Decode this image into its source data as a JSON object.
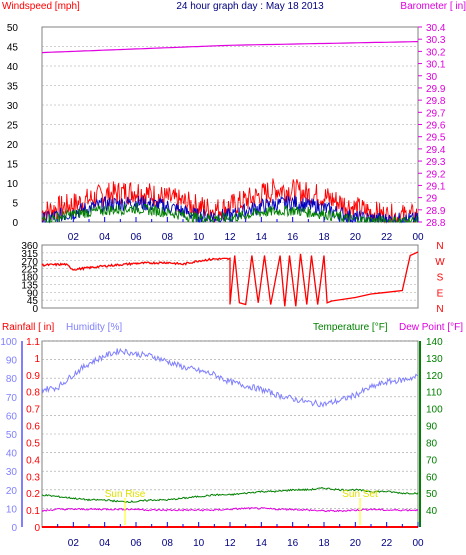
{
  "chart_data": [
    {
      "type": "line",
      "title": "24 hour graph day : May 18 2013",
      "ylabel_left": "Windspeed [mph]",
      "ylabel_right": "Barometer [ in]",
      "ylim_left": [
        0,
        50
      ],
      "ylim_right": [
        28.8,
        30.4
      ],
      "yticks_left": [
        "0",
        "5",
        "10",
        "15",
        "20",
        "25",
        "30",
        "35",
        "40",
        "45",
        "50"
      ],
      "yticks_right": [
        "28.8",
        "28.9",
        "29",
        "29.1",
        "29.2",
        "29.3",
        "29.4",
        "29.5",
        "29.6",
        "29.7",
        "29.8",
        "29.9",
        "30",
        "30.1",
        "30.2",
        "30.3",
        "30.4"
      ],
      "x_ticks": [
        "02",
        "04",
        "06",
        "08",
        "10",
        "12",
        "14",
        "16",
        "18",
        "20",
        "22",
        "00"
      ],
      "series": [
        {
          "axis": "right",
          "color": "#e000e0",
          "x": [
            0,
            4,
            8,
            12,
            16,
            20,
            24
          ],
          "values": [
            30.19,
            30.21,
            30.23,
            30.25,
            30.26,
            30.27,
            30.28
          ]
        },
        {
          "axis": "left",
          "color": "#ff0000",
          "x": [
            0,
            2,
            4,
            6,
            8,
            10,
            11,
            12,
            14,
            15,
            16,
            18,
            20,
            22,
            24
          ],
          "values": [
            2.5,
            4.5,
            7,
            8,
            6,
            4,
            3,
            4,
            7,
            8.5,
            8,
            6.5,
            3.5,
            1.5,
            1.5
          ]
        },
        {
          "axis": "left",
          "color": "#0000c0",
          "x": [
            0,
            2,
            4,
            6,
            8,
            10,
            12,
            14,
            16,
            18,
            20,
            22,
            24
          ],
          "values": [
            0.5,
            2.5,
            4.5,
            5,
            4,
            1.5,
            1.5,
            4,
            5,
            3.5,
            1,
            0.5,
            0.5
          ]
        },
        {
          "axis": "left",
          "color": "#008000",
          "x": [
            0,
            2,
            4,
            6,
            8,
            10,
            12,
            14,
            16,
            18,
            20,
            22,
            24
          ],
          "values": [
            0.5,
            2,
            3,
            3.5,
            2.5,
            1,
            1,
            2.5,
            3,
            2,
            0.5,
            0.2,
            0.2
          ]
        }
      ]
    },
    {
      "type": "line",
      "ylim": [
        0,
        360
      ],
      "yticks": [
        "0",
        "45",
        "90",
        "135",
        "180",
        "225",
        "270",
        "315",
        "360"
      ],
      "compass": [
        "N",
        "W",
        "S",
        "E",
        "N"
      ],
      "series": [
        {
          "color": "#ff0000",
          "x": [
            0,
            1.5,
            2,
            4,
            6,
            8,
            9,
            10,
            11,
            12
          ],
          "values": [
            245,
            250,
            220,
            240,
            255,
            260,
            250,
            270,
            280,
            280
          ]
        }
      ]
    },
    {
      "type": "line",
      "ylabel_left_1": "Rainfall [ in]",
      "ylabel_left_2": "Humidity [%]",
      "ylabel_right_1": "Temperature [°F]",
      "ylabel_right_2": "Dew Point [°F]",
      "ylim_humidity": [
        0,
        100
      ],
      "ylim_rain": [
        0,
        1.1
      ],
      "ylim_temp": [
        30,
        140
      ],
      "yticks_humidity": [
        "0",
        "10",
        "20",
        "30",
        "40",
        "50",
        "60",
        "70",
        "80",
        "90",
        "100"
      ],
      "yticks_rain": [
        "0",
        "0.1",
        "0.2",
        "0.3",
        "0.4",
        "0.5",
        "0.6",
        "0.7",
        "0.8",
        "0.9",
        "1",
        "1.1"
      ],
      "yticks_temp": [
        "40",
        "50",
        "60",
        "70",
        "80",
        "90",
        "100",
        "110",
        "120",
        "130",
        "140"
      ],
      "annotations": [
        "Sun Rise",
        "Sun Set"
      ],
      "series": [
        {
          "name": "Humidity",
          "color": "#8080ff",
          "x": [
            0,
            1,
            2,
            3,
            4,
            5,
            6,
            7,
            8,
            9,
            10,
            11,
            12,
            13,
            14,
            15,
            16,
            17,
            18,
            19,
            20,
            21,
            22,
            23,
            24
          ],
          "values": [
            74,
            75,
            82,
            88,
            92,
            95,
            93,
            92,
            89,
            86,
            84,
            82,
            78,
            76,
            74,
            71,
            69,
            67,
            66,
            68,
            71,
            75,
            78,
            79,
            81
          ]
        },
        {
          "name": "Temperature",
          "color": "#008000",
          "x": [
            0,
            1,
            2,
            3,
            4,
            5,
            6,
            7,
            8,
            9,
            10,
            11,
            12,
            13,
            14,
            15,
            16,
            17,
            18,
            19,
            20,
            21,
            22,
            23,
            24
          ],
          "values": [
            49,
            48,
            47,
            46,
            46,
            45,
            45,
            46,
            46,
            47,
            48,
            49,
            49,
            50,
            51,
            51,
            52,
            52,
            53,
            52,
            52,
            51,
            51,
            50,
            50
          ]
        },
        {
          "name": "Dew Point",
          "color": "#e000e0",
          "x": [
            0,
            1,
            2,
            3,
            4,
            5,
            6,
            7,
            8,
            9,
            10,
            11,
            12,
            13,
            14,
            15,
            16,
            17,
            18,
            19,
            20,
            21,
            22,
            23,
            24
          ],
          "values": [
            39.5,
            40.5,
            40.5,
            40.5,
            40.5,
            40.5,
            40.5,
            40,
            40,
            40,
            40,
            40,
            40.5,
            41,
            41,
            40.5,
            40.5,
            40,
            39.5,
            39.5,
            40,
            40.5,
            40,
            40,
            40
          ]
        },
        {
          "name": "Rainfall",
          "color": "#ff0000",
          "x": [
            0,
            24
          ],
          "values": [
            0,
            0
          ]
        }
      ],
      "x_ticks": [
        "02",
        "04",
        "06",
        "08",
        "10",
        "12",
        "14",
        "16",
        "18",
        "20",
        "22",
        "00"
      ]
    }
  ],
  "colors": {
    "wind_gust": "#ff0000",
    "wind_avg": "#0000c0",
    "wind_low": "#008000",
    "barometer": "#e000e0",
    "humidity": "#8080ff",
    "temperature": "#008000",
    "dewpoint": "#e000e0",
    "rain": "#ff0000",
    "grid": "#a0a0a0",
    "axis_blue": "#0000ff",
    "sun_marker": "#ffff00"
  }
}
